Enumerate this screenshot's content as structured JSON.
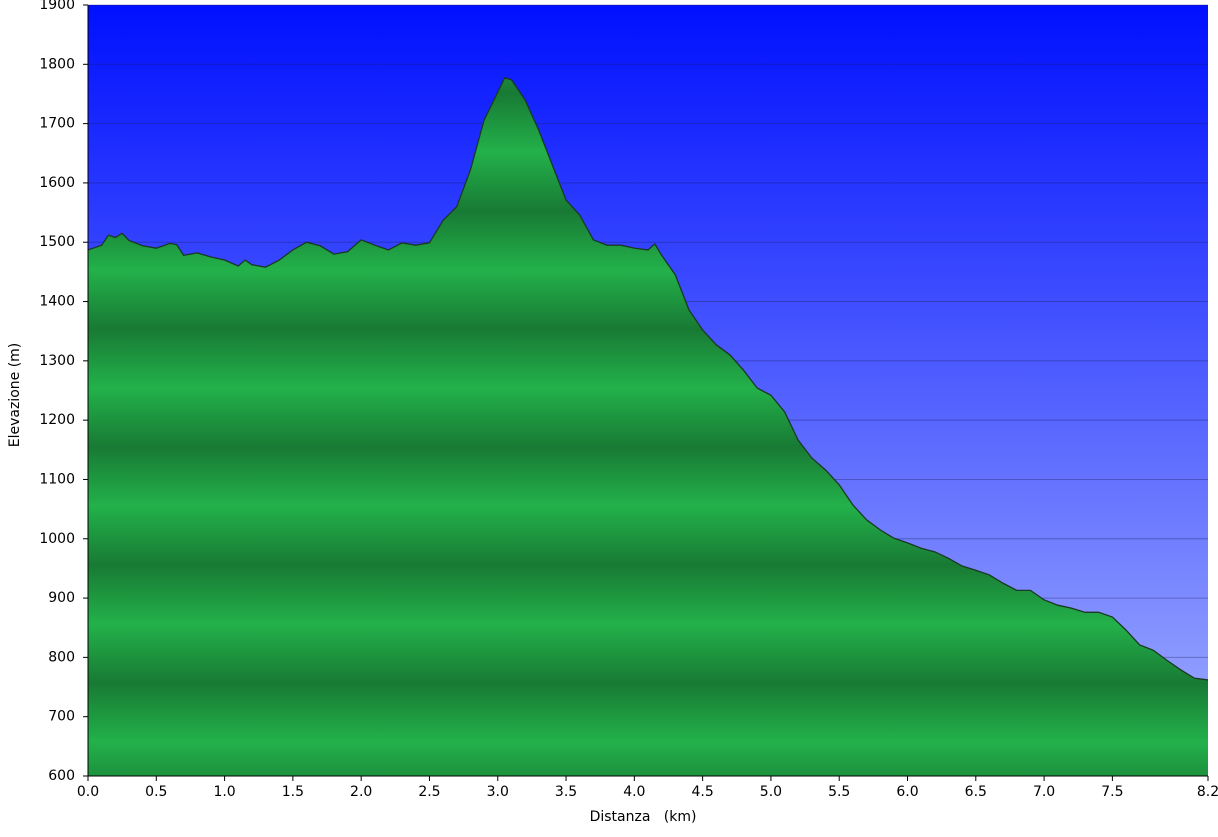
{
  "chart_data": {
    "type": "area",
    "x_label": "Distanza   (km)",
    "y_label": "Elevazione (m)",
    "x": [
      0,
      0.1,
      0.15,
      0.2,
      0.25,
      0.3,
      0.4,
      0.5,
      0.6,
      0.65,
      0.7,
      0.8,
      0.9,
      1.0,
      1.1,
      1.15,
      1.2,
      1.3,
      1.4,
      1.5,
      1.6,
      1.7,
      1.8,
      1.9,
      2.0,
      2.1,
      2.2,
      2.3,
      2.4,
      2.5,
      2.6,
      2.7,
      2.8,
      2.9,
      3.0,
      3.05,
      3.1,
      3.2,
      3.3,
      3.4,
      3.5,
      3.6,
      3.7,
      3.8,
      3.9,
      4.0,
      4.1,
      4.15,
      4.2,
      4.3,
      4.4,
      4.5,
      4.6,
      4.7,
      4.8,
      4.9,
      5.0,
      5.1,
      5.2,
      5.3,
      5.4,
      5.5,
      5.6,
      5.7,
      5.8,
      5.9,
      6.0,
      6.1,
      6.2,
      6.3,
      6.4,
      6.5,
      6.6,
      6.7,
      6.8,
      6.9,
      7.0,
      7.1,
      7.2,
      7.3,
      7.4,
      7.5,
      7.6,
      7.7,
      7.8,
      7.9,
      8.0,
      8.1,
      8.2
    ],
    "values": [
      1487,
      1495,
      1512,
      1508,
      1515,
      1503,
      1494,
      1490,
      1498,
      1496,
      1478,
      1482,
      1475,
      1470,
      1460,
      1470,
      1462,
      1458,
      1470,
      1487,
      1500,
      1494,
      1480,
      1484,
      1504,
      1495,
      1487,
      1499,
      1495,
      1499,
      1537,
      1560,
      1622,
      1706,
      1753,
      1777,
      1774,
      1740,
      1689,
      1630,
      1571,
      1546,
      1504,
      1495,
      1495,
      1490,
      1487,
      1497,
      1478,
      1445,
      1386,
      1352,
      1327,
      1310,
      1284,
      1254,
      1242,
      1214,
      1166,
      1136,
      1116,
      1091,
      1057,
      1032,
      1015,
      1001,
      993,
      984,
      978,
      967,
      954,
      947,
      939,
      925,
      913,
      913,
      897,
      888,
      883,
      876,
      876,
      868,
      846,
      821,
      812,
      795,
      779,
      765,
      762
    ],
    "color": "#22aa44",
    "xlim": [
      0,
      8.2
    ],
    "ylim": [
      600,
      1900
    ],
    "xticks": [
      {
        "value": 0,
        "label": "0.0"
      },
      0.5,
      {
        "value": 1,
        "label": "1.0"
      },
      1.5,
      {
        "value": 2,
        "label": "2.0"
      },
      2.5,
      {
        "value": 3,
        "label": "3.0"
      },
      3.5,
      {
        "value": 4,
        "label": "4.0"
      },
      4.5,
      {
        "value": 5,
        "label": "5.0"
      },
      5.5,
      {
        "value": 6,
        "label": "6.0"
      },
      6.5,
      {
        "value": 7,
        "label": "7.0"
      },
      7.5,
      8.2
    ],
    "yticks": [
      600,
      700,
      800,
      900,
      1000,
      1100,
      1200,
      1300,
      1400,
      1500,
      1600,
      1700,
      1800,
      1900
    ],
    "grid": true
  }
}
